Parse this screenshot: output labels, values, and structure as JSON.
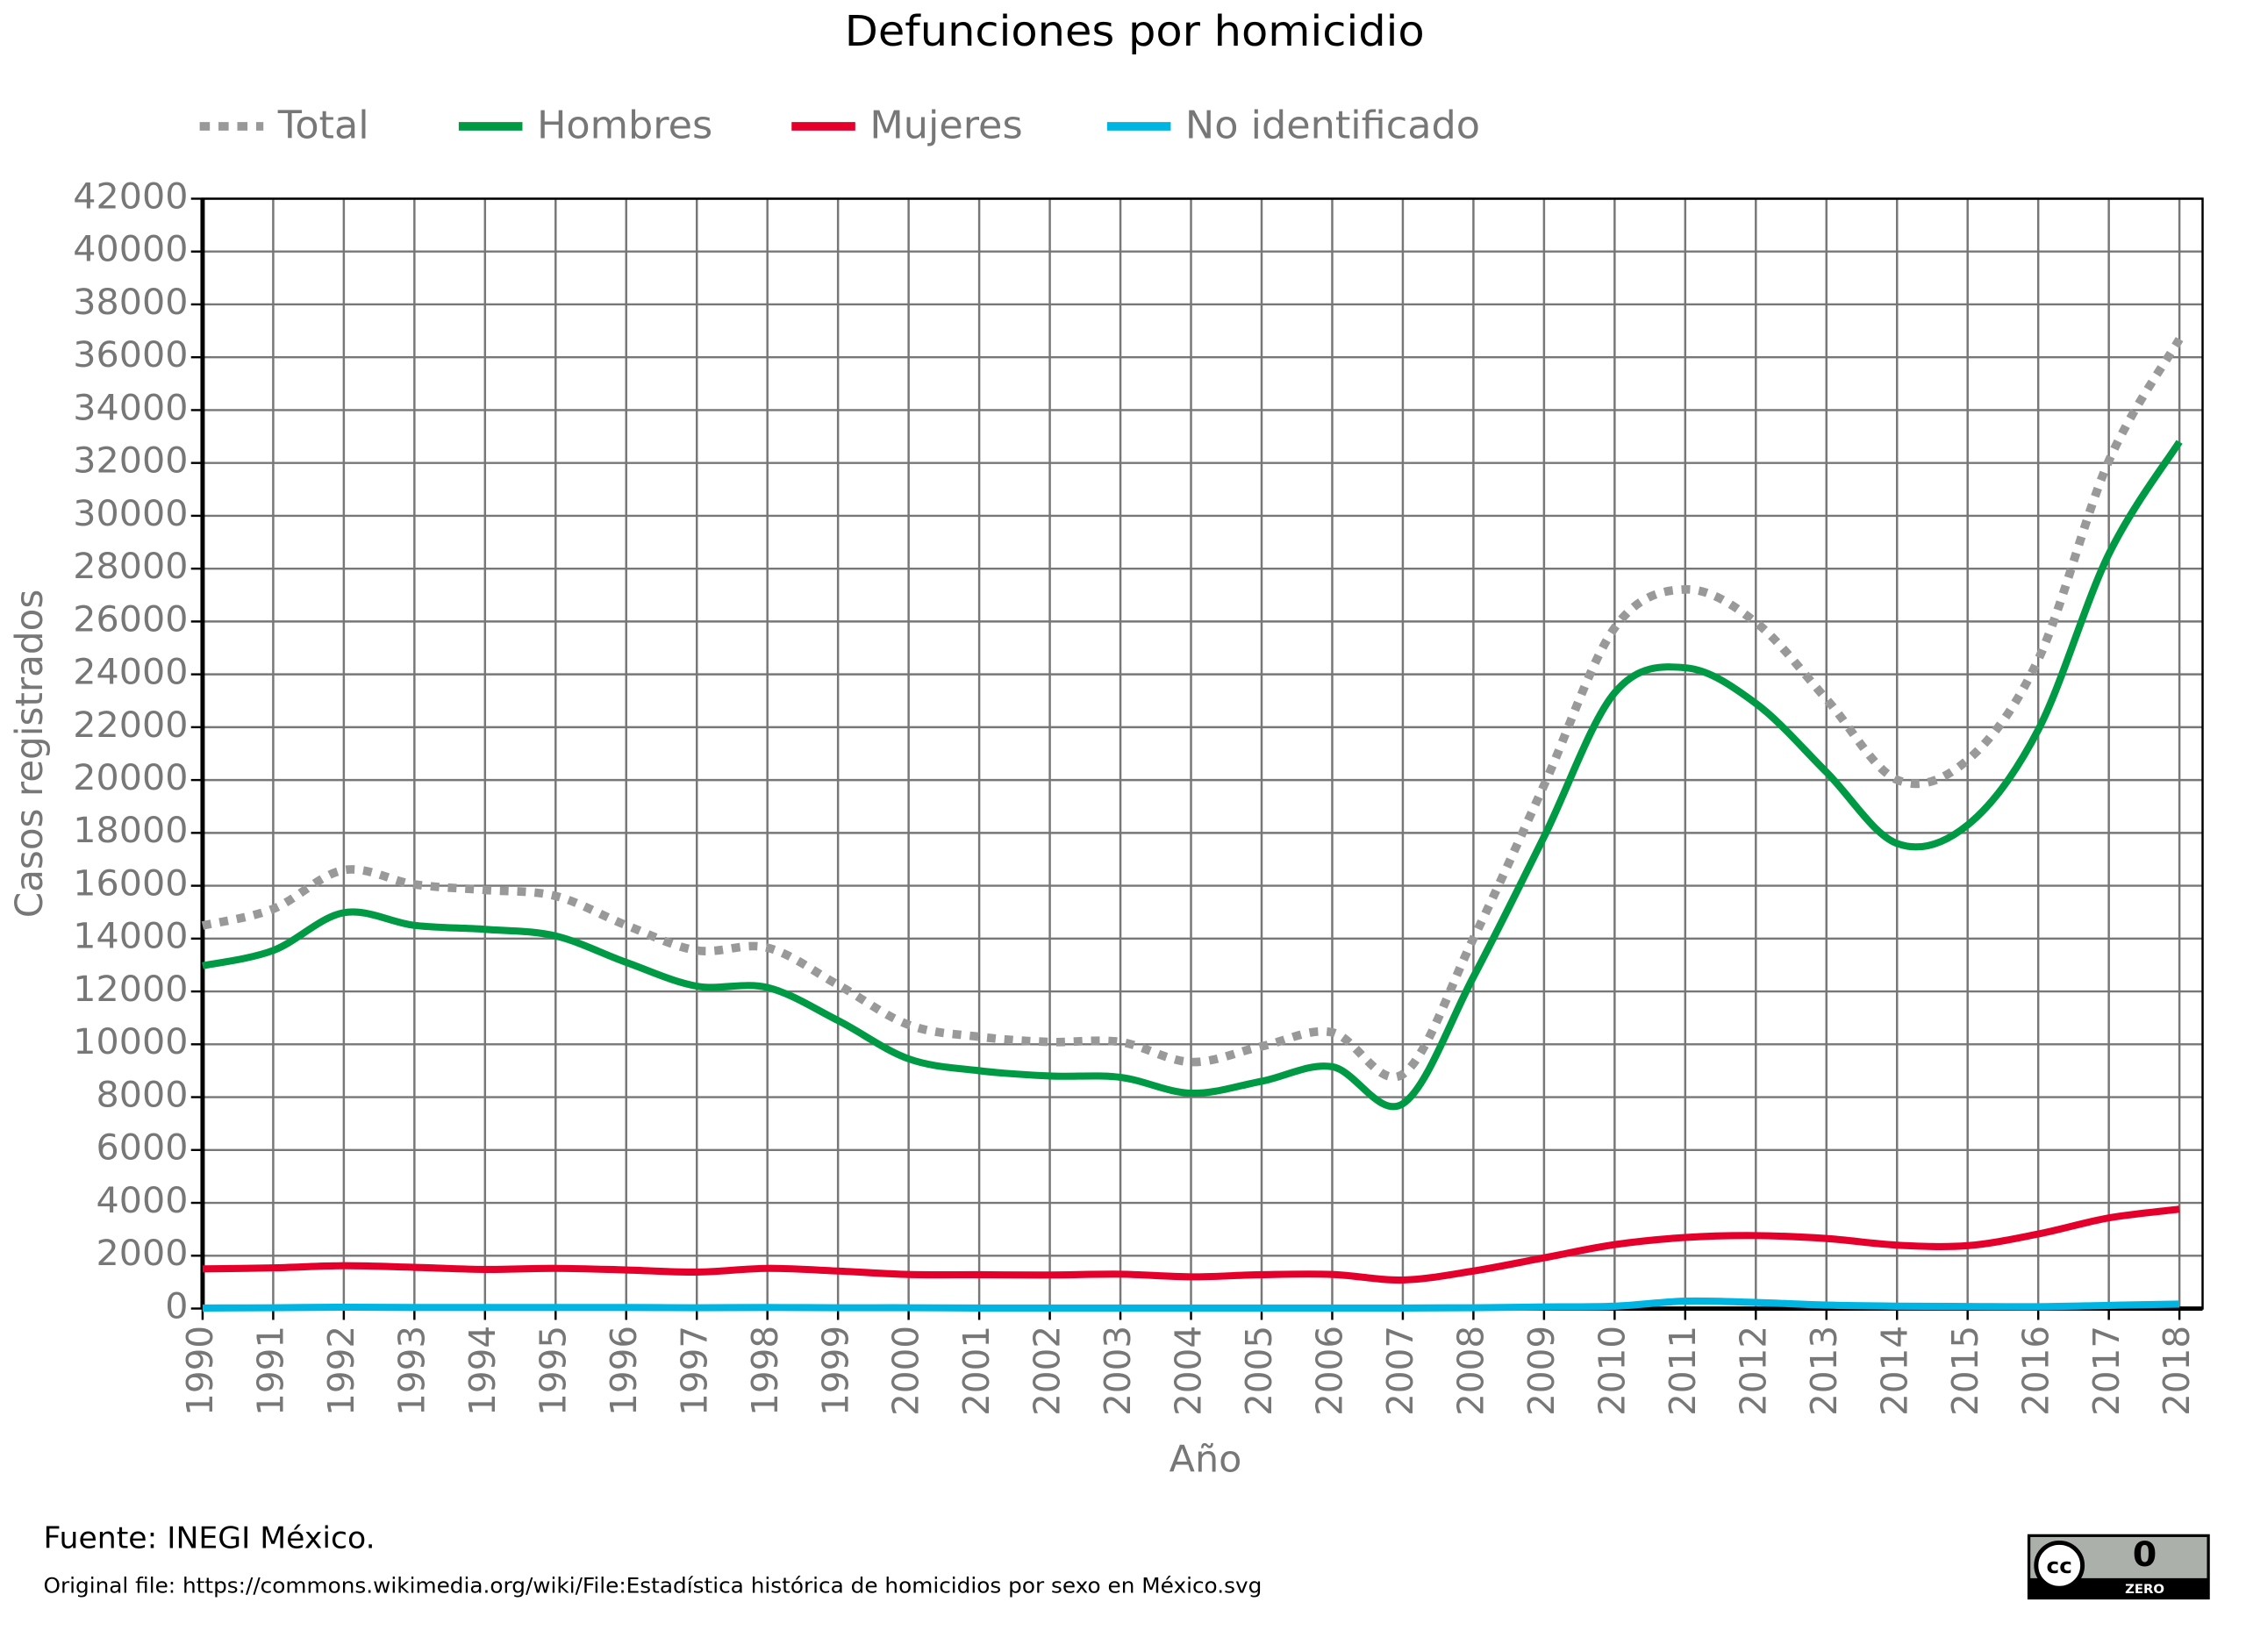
{
  "chart_data": {
    "type": "line",
    "title": "Defunciones por homicidio",
    "x_label": "Año",
    "y_label": "Casos registrados",
    "x": [
      1990,
      1991,
      1992,
      1993,
      1994,
      1995,
      1996,
      1997,
      1998,
      1999,
      2000,
      2001,
      2002,
      2003,
      2004,
      2005,
      2006,
      2007,
      2008,
      2009,
      2010,
      2011,
      2012,
      2013,
      2014,
      2015,
      2016,
      2017,
      2018
    ],
    "series": [
      {
        "name": "Total",
        "color": "#999999",
        "dashed": true,
        "values": [
          14493,
          15125,
          16594,
          16050,
          15839,
          15612,
          14505,
          13552,
          13656,
          12249,
          10737,
          10285,
          10088,
          10087,
          9329,
          9921,
          10452,
          8867,
          14006,
          19803,
          25757,
          27213,
          25967,
          23063,
          20010,
          20762,
          24559,
          32079,
          36685
        ]
      },
      {
        "name": "Hombres",
        "color": "#009a44",
        "values": [
          12970,
          13550,
          14980,
          14500,
          14350,
          14100,
          13100,
          12200,
          12150,
          10900,
          9450,
          9000,
          8800,
          8750,
          8150,
          8600,
          9150,
          7750,
          12550,
          17850,
          23300,
          24250,
          22900,
          20300,
          17600,
          18300,
          21900,
          28550,
          32800
        ]
      },
      {
        "name": "Mujeres",
        "color": "#e4002b",
        "values": [
          1500,
          1540,
          1620,
          1560,
          1480,
          1520,
          1460,
          1380,
          1520,
          1420,
          1290,
          1280,
          1270,
          1300,
          1200,
          1280,
          1290,
          1080,
          1420,
          1920,
          2420,
          2690,
          2760,
          2650,
          2400,
          2380,
          2820,
          3430,
          3760
        ]
      },
      {
        "name": "No identificado",
        "color": "#00b5e2",
        "values": [
          20,
          30,
          50,
          40,
          40,
          40,
          40,
          30,
          40,
          30,
          30,
          20,
          20,
          20,
          20,
          20,
          20,
          20,
          30,
          60,
          90,
          280,
          230,
          130,
          90,
          80,
          70,
          120,
          170
        ]
      }
    ],
    "xlim": [
      1990,
      2018
    ],
    "xticks": [
      1990,
      1991,
      1992,
      1993,
      1994,
      1995,
      1996,
      1997,
      1998,
      1999,
      2000,
      2001,
      2002,
      2003,
      2004,
      2005,
      2006,
      2007,
      2008,
      2009,
      2010,
      2011,
      2012,
      2013,
      2014,
      2015,
      2016,
      2017,
      2018
    ],
    "ylim": [
      0,
      42000
    ],
    "yticks": [
      0,
      2000,
      4000,
      6000,
      8000,
      10000,
      12000,
      14000,
      16000,
      18000,
      20000,
      22000,
      24000,
      26000,
      28000,
      30000,
      32000,
      34000,
      36000,
      38000,
      40000,
      42000
    ],
    "grid": true,
    "legend": "top",
    "source": "Fuente: INEGI México.",
    "note": "Original file: https://commons.wikimedia.org/wiki/File:Estadística histórica de homicidios por sexo en México.svg",
    "badge": [
      "cc",
      "ZERO"
    ]
  }
}
